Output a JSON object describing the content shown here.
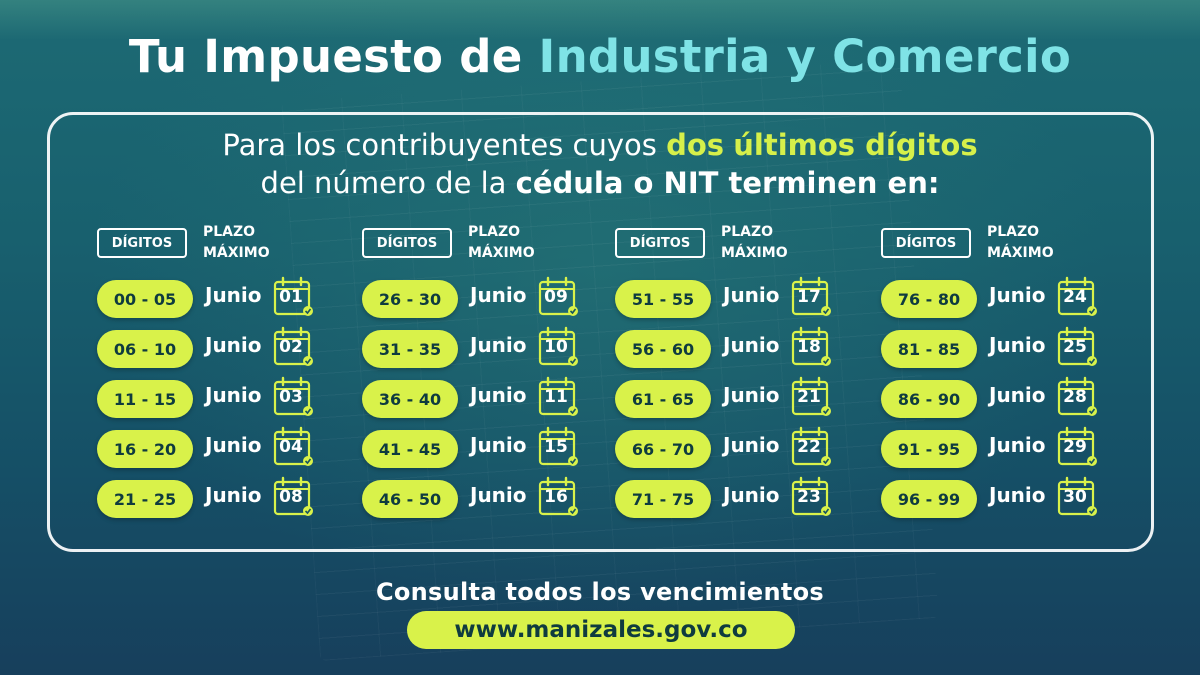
{
  "title": {
    "part1": "Tu Impuesto de",
    "part2": "Industria y Comercio"
  },
  "intro": {
    "line1_a": "Para los contribuyentes cuyos",
    "line1_b": "dos",
    "line1_c": "últimos dígitos",
    "line2_a": "del número de la",
    "line2_b": "cédula o NIT terminen en:"
  },
  "columns": [
    {
      "digits_label": "DÍGITOS",
      "plazo_label_1": "PLAZO",
      "plazo_label_2": "MÁXIMO",
      "rows": [
        {
          "range": "00 - 05",
          "month": "Junio",
          "day": "01"
        },
        {
          "range": "06 - 10",
          "month": "Junio",
          "day": "02"
        },
        {
          "range": "11 - 15",
          "month": "Junio",
          "day": "03"
        },
        {
          "range": "16 - 20",
          "month": "Junio",
          "day": "04"
        },
        {
          "range": "21 - 25",
          "month": "Junio",
          "day": "08"
        }
      ]
    },
    {
      "digits_label": "DÍGITOS",
      "plazo_label_1": "PLAZO",
      "plazo_label_2": "MÁXIMO",
      "rows": [
        {
          "range": "26 - 30",
          "month": "Junio",
          "day": "09"
        },
        {
          "range": "31 - 35",
          "month": "Junio",
          "day": "10"
        },
        {
          "range": "36 - 40",
          "month": "Junio",
          "day": "11"
        },
        {
          "range": "41 - 45",
          "month": "Junio",
          "day": "15"
        },
        {
          "range": "46 - 50",
          "month": "Junio",
          "day": "16"
        }
      ]
    },
    {
      "digits_label": "DÍGITOS",
      "plazo_label_1": "PLAZO",
      "plazo_label_2": "MÁXIMO",
      "rows": [
        {
          "range": "51 - 55",
          "month": "Junio",
          "day": "17"
        },
        {
          "range": "56 - 60",
          "month": "Junio",
          "day": "18"
        },
        {
          "range": "61 - 65",
          "month": "Junio",
          "day": "21"
        },
        {
          "range": "66 - 70",
          "month": "Junio",
          "day": "22"
        },
        {
          "range": "71 - 75",
          "month": "Junio",
          "day": "23"
        }
      ]
    },
    {
      "digits_label": "DÍGITOS",
      "plazo_label_1": "PLAZO",
      "plazo_label_2": "MÁXIMO",
      "rows": [
        {
          "range": "76 - 80",
          "month": "Junio",
          "day": "24"
        },
        {
          "range": "81 - 85",
          "month": "Junio",
          "day": "25"
        },
        {
          "range": "86 - 90",
          "month": "Junio",
          "day": "28"
        },
        {
          "range": "91 - 95",
          "month": "Junio",
          "day": "29"
        },
        {
          "range": "96 - 99",
          "month": "Junio",
          "day": "30"
        }
      ]
    }
  ],
  "footer": {
    "consulta": "Consulta todos los vencimientos",
    "url": "www.manizales.gov.co"
  },
  "colors": {
    "accent_teal": "#7fe3e6",
    "accent_lime": "#d9f24a",
    "background": "#18606e"
  },
  "icons": {
    "calendar": "calendar-icon"
  }
}
